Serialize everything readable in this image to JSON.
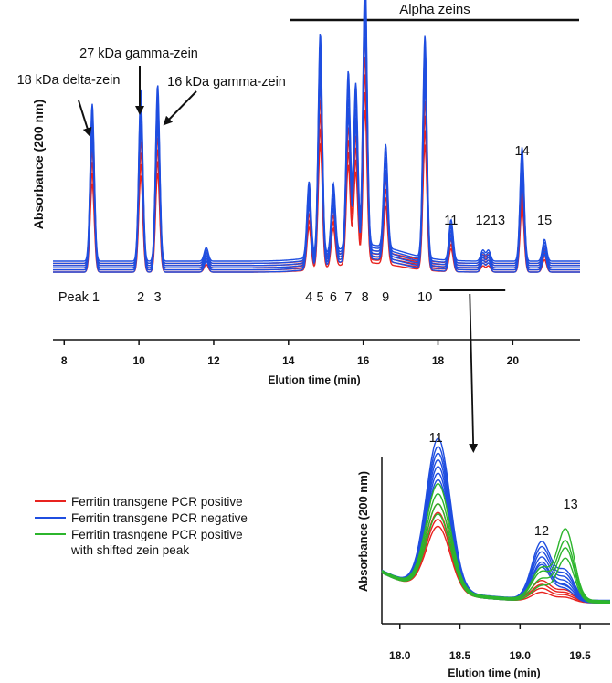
{
  "chart_data": [
    {
      "type": "line",
      "title": "",
      "xlabel": "Elution time (min)",
      "ylabel": "Absorbance (200 nm)",
      "xlim": [
        7.7,
        21.8
      ],
      "xticks": [
        8,
        10,
        12,
        14,
        16,
        18,
        20
      ],
      "bracket_label": "Alpha zeins",
      "annotations": [
        {
          "text": "18 kDa delta-zein",
          "x": 8.8
        },
        {
          "text": "27 kDa gamma-zein",
          "x": 10.05
        },
        {
          "text": "16 kDa gamma-zein",
          "x": 10.5
        }
      ],
      "peak_labels": [
        {
          "text": "Peak 1",
          "x": 8.75,
          "row": "bottom"
        },
        {
          "text": "2",
          "x": 10.05,
          "row": "bottom"
        },
        {
          "text": "3",
          "x": 10.5,
          "row": "bottom"
        },
        {
          "text": "4",
          "x": 14.55,
          "row": "bottom"
        },
        {
          "text": "5",
          "x": 14.85,
          "row": "bottom"
        },
        {
          "text": "6",
          "x": 15.2,
          "row": "bottom"
        },
        {
          "text": "7",
          "x": 15.6,
          "row": "bottom"
        },
        {
          "text": "8",
          "x": 16.05,
          "row": "bottom"
        },
        {
          "text": "9",
          "x": 16.6,
          "row": "bottom"
        },
        {
          "text": "10",
          "x": 17.65,
          "row": "bottom"
        },
        {
          "text": "11",
          "x": 18.35,
          "row": "top"
        },
        {
          "text": "12",
          "x": 19.2,
          "row": "top"
        },
        {
          "text": "13",
          "x": 19.6,
          "row": "top"
        },
        {
          "text": "14",
          "x": 20.25,
          "row": "high"
        },
        {
          "text": "15",
          "x": 20.85,
          "row": "top"
        }
      ],
      "zoom_bracket_x": [
        18.05,
        19.8
      ],
      "peaks": [
        {
          "x": 8.75,
          "h": 0.58
        },
        {
          "x": 10.05,
          "h": 0.63
        },
        {
          "x": 10.5,
          "h": 0.65
        },
        {
          "x": 11.8,
          "h": 0.05
        },
        {
          "x": 14.55,
          "h": 0.28
        },
        {
          "x": 14.85,
          "h": 0.82
        },
        {
          "x": 15.2,
          "h": 0.25
        },
        {
          "x": 15.6,
          "h": 0.65
        },
        {
          "x": 15.8,
          "h": 0.6
        },
        {
          "x": 16.05,
          "h": 1.0
        },
        {
          "x": 16.6,
          "h": 0.38
        },
        {
          "x": 17.65,
          "h": 0.82
        },
        {
          "x": 18.35,
          "h": 0.15
        },
        {
          "x": 19.2,
          "h": 0.04
        },
        {
          "x": 19.35,
          "h": 0.04
        },
        {
          "x": 20.25,
          "h": 0.42
        },
        {
          "x": 20.85,
          "h": 0.08
        }
      ],
      "series": [
        {
          "name": "Ferritin transgene PCR positive",
          "color": "#e8231f",
          "scales": [
            0.62,
            0.68,
            0.74,
            0.8,
            0.86
          ]
        },
        {
          "name": "Ferritin transgene PCR negative",
          "color": "#1f4ee0",
          "scales": [
            0.9,
            0.94,
            0.98,
            1.02,
            1.06,
            1.1
          ]
        }
      ]
    },
    {
      "type": "line",
      "title": "",
      "xlabel": "Elution time (min)",
      "ylabel": "Absorbance (200 nm)",
      "xlim": [
        17.85,
        19.75
      ],
      "xticks": [
        18.0,
        18.5,
        19.0,
        19.5
      ],
      "xtick_labels": [
        "18.0",
        "18.5",
        "19.0",
        "19.5"
      ],
      "peak_labels": [
        {
          "text": "11",
          "x": 18.3
        },
        {
          "text": "12",
          "x": 19.18
        },
        {
          "text": "13",
          "x": 19.42
        }
      ],
      "series": [
        {
          "name": "Ferritin transgene PCR positive",
          "color": "#e8231f",
          "peak11": [
            0.42,
            0.46,
            0.5,
            0.55
          ],
          "peak12": [
            0.06,
            0.08,
            0.1,
            0.12
          ],
          "peak13": [
            0.03,
            0.04,
            0.05,
            0.06
          ]
        },
        {
          "name": "Ferritin transgene PCR negative",
          "color": "#1f4ee0",
          "peak11": [
            0.72,
            0.76,
            0.8,
            0.84,
            0.88,
            0.92,
            0.97
          ],
          "peak12": [
            0.22,
            0.25,
            0.28,
            0.31,
            0.34,
            0.37
          ],
          "peak13": [
            0.08,
            0.1,
            0.12,
            0.14,
            0.16,
            0.18
          ]
        },
        {
          "name": "Ferritin trasngene PCR positive with shifted zein peak",
          "color": "#2cb52c",
          "peak11": [
            0.5,
            0.56,
            0.62,
            0.68
          ],
          "peak12": [
            0.1,
            0.14,
            0.18,
            0.2
          ],
          "peak13": [
            0.28,
            0.34,
            0.38,
            0.45
          ]
        }
      ]
    }
  ],
  "legend": {
    "items": [
      {
        "label": "Ferritin transgene PCR positive",
        "color": "#e8231f"
      },
      {
        "label": "Ferritin transgene PCR negative",
        "color": "#1f4ee0"
      },
      {
        "label": "Ferritin trasngene PCR positive",
        "color": "#2cb52c"
      }
    ],
    "continuation": "with shifted zein peak"
  }
}
